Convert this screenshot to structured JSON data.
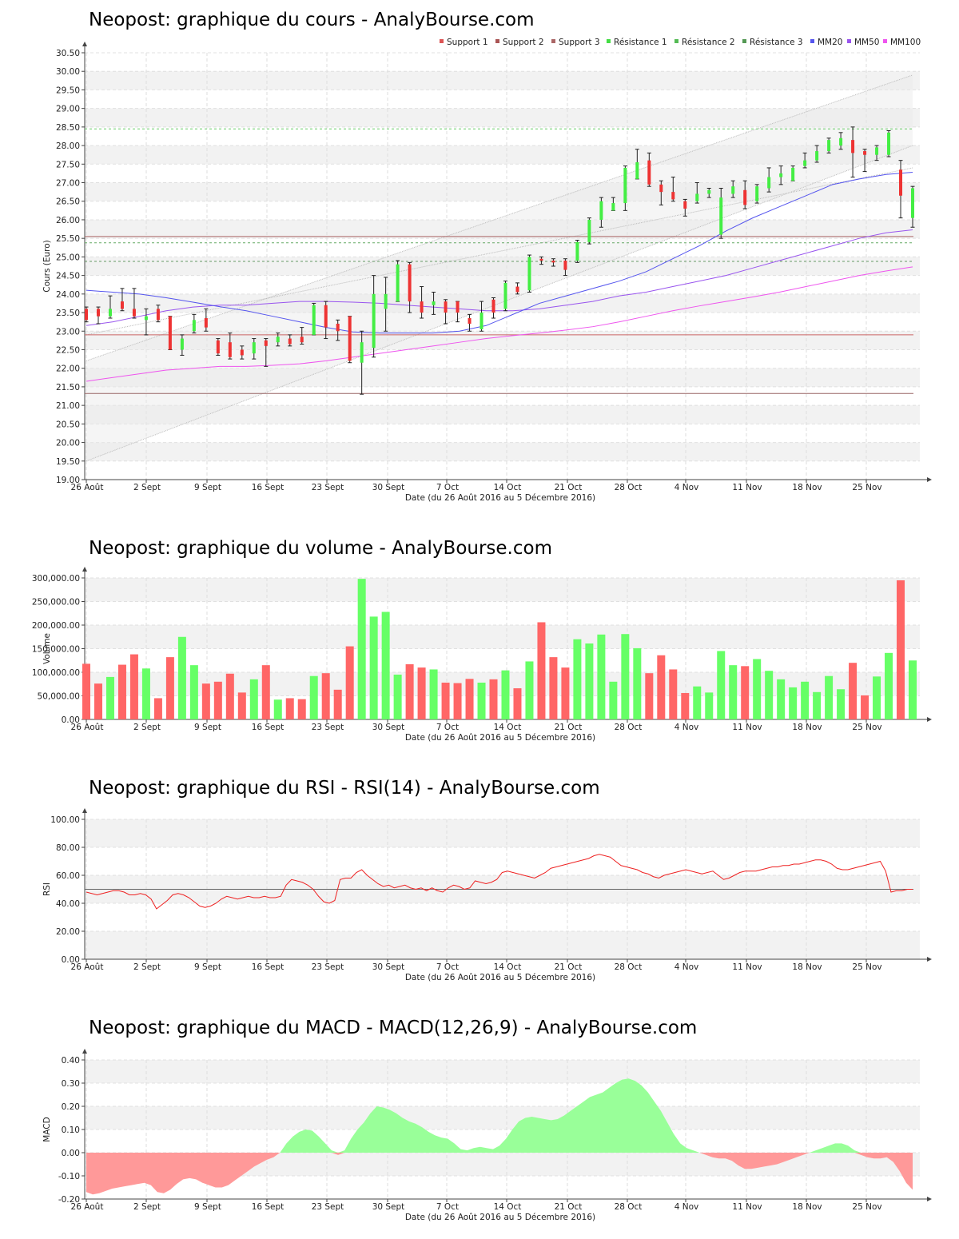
{
  "date_label": "Date (du 26 Août 2016 au 5 Décembre 2016)",
  "x_ticks": [
    "26 Août",
    "2 Sept",
    "9 Sept",
    "16 Sept",
    "23 Sept",
    "30 Sept",
    "7 Oct",
    "14 Oct",
    "21 Oct",
    "28 Oct",
    "4 Nov",
    "11 Nov",
    "18 Nov",
    "25 Nov"
  ],
  "colors": {
    "up": "#44ee44",
    "down": "#ee3333",
    "mm20": "#5555ee",
    "mm50": "#9955ee",
    "mm100": "#ee55ee",
    "rsi": "#ee2222",
    "macd_pos": "#99ff99",
    "macd_neg": "#ff9999"
  },
  "chart_data": [
    {
      "type": "candlestick",
      "title": "Neopost: graphique du cours - AnalyBourse.com",
      "ylabel": "Cours (Euro)",
      "xlabel": "Date (du 26 Août 2016 au 5 Décembre 2016)",
      "ylim": [
        19.0,
        30.5
      ],
      "yticks": [
        "19.00",
        "19.50",
        "20.00",
        "20.50",
        "21.00",
        "21.50",
        "22.00",
        "22.50",
        "23.00",
        "23.50",
        "24.00",
        "24.50",
        "25.00",
        "25.50",
        "26.00",
        "26.50",
        "27.00",
        "27.50",
        "28.00",
        "28.50",
        "29.00",
        "29.50",
        "30.00",
        "30.50"
      ],
      "legend_placement": "top-right",
      "legend": [
        "Support 1",
        "Support 2",
        "Support 3",
        "Résistance 1",
        "Résistance 2",
        "Résistance 3",
        "MM20",
        "MM50",
        "MM100"
      ],
      "levels": {
        "support_1": 22.9,
        "support_2": 21.32,
        "support_3": 25.55,
        "resistance_1": 28.45,
        "resistance_2": 25.38,
        "resistance_3": 24.88
      },
      "trend_channel": {
        "start": [
          19.5,
          22.2,
          22.9
        ],
        "end": [
          28.0,
          29.9,
          27.4
        ]
      },
      "candles": [
        {
          "o": 23.6,
          "c": 23.3,
          "h": 23.65,
          "l": 23.25
        },
        {
          "o": 23.6,
          "c": 23.4,
          "h": 23.65,
          "l": 23.2
        },
        {
          "o": 23.4,
          "c": 23.6,
          "h": 23.95,
          "l": 23.35
        },
        {
          "o": 23.8,
          "c": 23.6,
          "h": 24.15,
          "l": 23.55
        },
        {
          "o": 23.6,
          "c": 23.4,
          "h": 24.15,
          "l": 23.35
        },
        {
          "o": 23.3,
          "c": 23.4,
          "h": 23.6,
          "l": 22.9
        },
        {
          "o": 23.6,
          "c": 23.3,
          "h": 23.7,
          "l": 23.25
        },
        {
          "o": 23.4,
          "c": 22.5,
          "h": 23.4,
          "l": 22.5
        },
        {
          "o": 22.5,
          "c": 22.8,
          "h": 22.9,
          "l": 22.35
        },
        {
          "o": 23.0,
          "c": 23.3,
          "h": 23.45,
          "l": 22.95
        },
        {
          "o": 23.35,
          "c": 23.1,
          "h": 23.6,
          "l": 23.0
        },
        {
          "o": 22.75,
          "c": 22.4,
          "h": 22.8,
          "l": 22.35
        },
        {
          "o": 22.7,
          "c": 22.3,
          "h": 22.95,
          "l": 22.25
        },
        {
          "o": 22.5,
          "c": 22.35,
          "h": 22.6,
          "l": 22.25
        },
        {
          "o": 22.4,
          "c": 22.7,
          "h": 22.8,
          "l": 22.25
        },
        {
          "o": 22.75,
          "c": 22.6,
          "h": 22.8,
          "l": 22.05
        },
        {
          "o": 22.7,
          "c": 22.85,
          "h": 22.95,
          "l": 22.6
        },
        {
          "o": 22.8,
          "c": 22.65,
          "h": 22.9,
          "l": 22.6
        },
        {
          "o": 22.85,
          "c": 22.7,
          "h": 23.1,
          "l": 22.65
        },
        {
          "o": 22.9,
          "c": 23.7,
          "h": 23.75,
          "l": 22.9
        },
        {
          "o": 23.7,
          "c": 23.1,
          "h": 23.8,
          "l": 22.8
        },
        {
          "o": 23.2,
          "c": 23.0,
          "h": 23.3,
          "l": 22.75
        },
        {
          "o": 23.4,
          "c": 22.2,
          "h": 23.4,
          "l": 22.15
        },
        {
          "o": 22.15,
          "c": 22.7,
          "h": 23.0,
          "l": 21.3
        },
        {
          "o": 22.55,
          "c": 24.0,
          "h": 24.5,
          "l": 22.3
        },
        {
          "o": 23.6,
          "c": 24.0,
          "h": 24.45,
          "l": 23.0
        },
        {
          "o": 23.8,
          "c": 24.8,
          "h": 24.9,
          "l": 23.8
        },
        {
          "o": 24.8,
          "c": 23.8,
          "h": 24.85,
          "l": 23.5
        },
        {
          "o": 23.8,
          "c": 23.5,
          "h": 24.2,
          "l": 23.35
        },
        {
          "o": 23.7,
          "c": 23.8,
          "h": 24.05,
          "l": 23.45
        },
        {
          "o": 23.8,
          "c": 23.5,
          "h": 23.85,
          "l": 23.2
        },
        {
          "o": 23.8,
          "c": 23.5,
          "h": 23.8,
          "l": 23.25
        },
        {
          "o": 23.35,
          "c": 23.2,
          "h": 23.45,
          "l": 23.0
        },
        {
          "o": 23.05,
          "c": 23.5,
          "h": 23.8,
          "l": 23.0
        },
        {
          "o": 23.85,
          "c": 23.5,
          "h": 23.9,
          "l": 23.35
        },
        {
          "o": 23.6,
          "c": 24.3,
          "h": 24.35,
          "l": 23.55
        },
        {
          "o": 24.2,
          "c": 24.05,
          "h": 24.3,
          "l": 24.0
        },
        {
          "o": 24.1,
          "c": 25.0,
          "h": 25.05,
          "l": 24.05
        },
        {
          "o": 24.95,
          "c": 24.9,
          "h": 25.0,
          "l": 24.8
        },
        {
          "o": 24.9,
          "c": 24.85,
          "h": 24.95,
          "l": 24.75
        },
        {
          "o": 24.9,
          "c": 24.65,
          "h": 24.95,
          "l": 24.5
        },
        {
          "o": 24.9,
          "c": 25.4,
          "h": 25.45,
          "l": 24.85
        },
        {
          "o": 25.4,
          "c": 26.0,
          "h": 26.05,
          "l": 25.35
        },
        {
          "o": 26.0,
          "c": 26.5,
          "h": 26.6,
          "l": 25.8
        },
        {
          "o": 26.25,
          "c": 26.45,
          "h": 26.6,
          "l": 26.25
        },
        {
          "o": 26.45,
          "c": 27.4,
          "h": 27.45,
          "l": 26.25
        },
        {
          "o": 27.1,
          "c": 27.55,
          "h": 27.9,
          "l": 27.1
        },
        {
          "o": 27.6,
          "c": 26.95,
          "h": 27.8,
          "l": 26.9
        },
        {
          "o": 26.95,
          "c": 26.75,
          "h": 27.05,
          "l": 26.4
        },
        {
          "o": 26.75,
          "c": 26.55,
          "h": 27.15,
          "l": 26.5
        },
        {
          "o": 26.5,
          "c": 26.3,
          "h": 26.55,
          "l": 26.1
        },
        {
          "o": 26.5,
          "c": 26.7,
          "h": 27.0,
          "l": 26.45
        },
        {
          "o": 26.7,
          "c": 26.8,
          "h": 26.85,
          "l": 26.6
        },
        {
          "o": 25.6,
          "c": 26.6,
          "h": 26.85,
          "l": 25.5
        },
        {
          "o": 26.7,
          "c": 26.9,
          "h": 27.05,
          "l": 26.6
        },
        {
          "o": 26.8,
          "c": 26.4,
          "h": 27.05,
          "l": 26.3
        },
        {
          "o": 26.5,
          "c": 26.9,
          "h": 26.95,
          "l": 26.45
        },
        {
          "o": 26.85,
          "c": 27.15,
          "h": 27.4,
          "l": 26.75
        },
        {
          "o": 27.15,
          "c": 27.25,
          "h": 27.45,
          "l": 26.95
        },
        {
          "o": 27.05,
          "c": 27.4,
          "h": 27.45,
          "l": 27.05
        },
        {
          "o": 27.45,
          "c": 27.6,
          "h": 27.8,
          "l": 27.4
        },
        {
          "o": 27.6,
          "c": 27.85,
          "h": 28.0,
          "l": 27.55
        },
        {
          "o": 27.85,
          "c": 28.15,
          "h": 28.2,
          "l": 27.8
        },
        {
          "o": 28.0,
          "c": 28.2,
          "h": 28.35,
          "l": 27.9
        },
        {
          "o": 28.15,
          "c": 27.8,
          "h": 28.5,
          "l": 27.15
        },
        {
          "o": 27.85,
          "c": 27.75,
          "h": 27.9,
          "l": 27.3
        },
        {
          "o": 27.75,
          "c": 27.95,
          "h": 28.0,
          "l": 27.6
        },
        {
          "o": 27.75,
          "c": 28.35,
          "h": 28.4,
          "l": 27.7
        },
        {
          "o": 27.35,
          "c": 26.65,
          "h": 27.6,
          "l": 26.05
        },
        {
          "o": 26.05,
          "c": 26.85,
          "h": 26.9,
          "l": 25.8
        }
      ],
      "mm20": [
        24.1,
        24.05,
        24.0,
        23.9,
        23.78,
        23.66,
        23.55,
        23.4,
        23.25,
        23.1,
        22.98,
        22.95,
        22.95,
        22.95,
        23.0,
        23.15,
        23.45,
        23.75,
        23.95,
        24.15,
        24.35,
        24.6,
        24.95,
        25.3,
        25.7,
        26.05,
        26.35,
        26.65,
        26.95,
        27.1,
        27.22,
        27.28
      ],
      "mm50": [
        23.15,
        23.25,
        23.4,
        23.55,
        23.65,
        23.7,
        23.7,
        23.75,
        23.8,
        23.8,
        23.78,
        23.75,
        23.7,
        23.65,
        23.6,
        23.55,
        23.55,
        23.6,
        23.7,
        23.8,
        23.95,
        24.05,
        24.2,
        24.35,
        24.5,
        24.7,
        24.9,
        25.1,
        25.3,
        25.5,
        25.65,
        25.73
      ],
      "mm100": [
        21.65,
        21.75,
        21.85,
        21.95,
        22.0,
        22.05,
        22.05,
        22.08,
        22.12,
        22.2,
        22.3,
        22.4,
        22.5,
        22.6,
        22.7,
        22.8,
        22.88,
        22.95,
        23.03,
        23.12,
        23.25,
        23.4,
        23.55,
        23.68,
        23.8,
        23.92,
        24.05,
        24.2,
        24.35,
        24.5,
        24.62,
        24.73
      ]
    },
    {
      "type": "bar",
      "title": "Neopost: graphique du volume - AnalyBourse.com",
      "ylabel": "Volume",
      "xlabel": "Date (du 26 Août 2016 au 5 Décembre 2016)",
      "ylim": [
        0,
        300000
      ],
      "yticks": [
        "0.00",
        "50,000.00",
        "100,000.00",
        "150,000.00",
        "200,000.00",
        "250,000.00",
        "300,000.00"
      ],
      "values": [
        118000,
        76000,
        90000,
        116000,
        138000,
        108000,
        45000,
        132000,
        175000,
        115000,
        76000,
        80000,
        97000,
        57000,
        85000,
        115000,
        42000,
        45000,
        43000,
        92000,
        98000,
        63000,
        155000,
        298000,
        218000,
        228000,
        95000,
        117000,
        110000,
        106000,
        78000,
        77000,
        86000,
        78000,
        85000,
        104000,
        66000,
        123000,
        206000,
        132000,
        110000,
        170000,
        161000,
        180000,
        80000,
        181000,
        151000,
        98000,
        136000,
        106000,
        56000,
        70000,
        57000,
        145000,
        115000,
        113000,
        128000,
        103000,
        85000,
        68000,
        80000,
        58000,
        92000,
        64000,
        120000,
        51000,
        91000,
        141000,
        295000,
        125000
      ]
    },
    {
      "type": "line",
      "title": "Neopost: graphique du RSI - RSI(14) - AnalyBourse.com",
      "ylabel": "RSI",
      "xlabel": "Date (du 26 Août 2016 au 5 Décembre 2016)",
      "ylim": [
        0,
        100
      ],
      "yticks": [
        "0.00",
        "20.00",
        "40.00",
        "60.00",
        "80.00",
        "100.00"
      ],
      "reference": 50,
      "values": [
        48,
        47,
        46,
        47,
        48,
        49,
        49,
        48,
        46,
        46,
        47,
        46,
        43,
        36,
        39,
        42,
        46,
        47,
        46,
        44,
        41,
        38,
        37,
        38,
        40,
        43,
        45,
        44,
        43,
        44,
        45,
        44,
        44,
        45,
        44,
        44,
        45,
        53,
        57,
        56,
        55,
        53,
        50,
        45,
        41,
        40,
        42,
        57,
        58,
        58,
        62,
        64,
        60,
        57,
        54,
        52,
        53,
        51,
        52,
        53,
        51,
        50,
        51,
        49,
        51,
        49,
        48,
        51,
        53,
        52,
        50,
        51,
        56,
        55,
        54,
        55,
        57,
        62,
        63,
        62,
        61,
        60,
        59,
        58,
        60,
        62,
        65,
        66,
        67,
        68,
        69,
        70,
        71,
        72,
        74,
        75,
        74,
        73,
        70,
        67,
        66,
        65,
        64,
        62,
        61,
        59,
        58,
        60,
        61,
        62,
        63,
        64,
        63,
        62,
        61,
        62,
        63,
        60,
        57,
        58,
        60,
        62,
        63,
        63,
        63,
        64,
        65,
        66,
        66,
        67,
        67,
        68,
        68,
        69,
        70,
        71,
        71,
        70,
        68,
        65,
        64,
        64,
        65,
        66,
        67,
        68,
        69,
        70,
        63,
        48,
        49,
        49,
        50,
        50
      ]
    },
    {
      "type": "area",
      "title": "Neopost: graphique du MACD - MACD(12,26,9) - AnalyBourse.com",
      "ylabel": "MACD",
      "xlabel": "Date (du 26 Août 2016 au 5 Décembre 2016)",
      "ylim": [
        -0.2,
        0.4
      ],
      "yticks": [
        "-0.20",
        "-0.10",
        "0.00",
        "0.10",
        "0.20",
        "0.30",
        "0.40"
      ],
      "values": [
        -0.17,
        -0.18,
        -0.175,
        -0.165,
        -0.155,
        -0.15,
        -0.145,
        -0.14,
        -0.135,
        -0.13,
        -0.14,
        -0.17,
        -0.175,
        -0.16,
        -0.135,
        -0.115,
        -0.11,
        -0.115,
        -0.13,
        -0.14,
        -0.15,
        -0.15,
        -0.14,
        -0.12,
        -0.1,
        -0.08,
        -0.06,
        -0.045,
        -0.03,
        -0.02,
        0.0,
        0.04,
        0.07,
        0.09,
        0.1,
        0.095,
        0.07,
        0.04,
        0.01,
        -0.01,
        0.01,
        0.06,
        0.1,
        0.13,
        0.17,
        0.2,
        0.195,
        0.185,
        0.17,
        0.15,
        0.135,
        0.125,
        0.11,
        0.09,
        0.075,
        0.065,
        0.06,
        0.04,
        0.015,
        0.01,
        0.02,
        0.025,
        0.02,
        0.015,
        0.03,
        0.06,
        0.1,
        0.135,
        0.15,
        0.155,
        0.15,
        0.145,
        0.14,
        0.145,
        0.16,
        0.18,
        0.2,
        0.22,
        0.24,
        0.25,
        0.26,
        0.28,
        0.3,
        0.315,
        0.32,
        0.31,
        0.29,
        0.26,
        0.22,
        0.18,
        0.13,
        0.08,
        0.04,
        0.02,
        0.01,
        0.0,
        -0.01,
        -0.02,
        -0.025,
        -0.025,
        -0.035,
        -0.055,
        -0.07,
        -0.07,
        -0.065,
        -0.06,
        -0.055,
        -0.05,
        -0.04,
        -0.03,
        -0.02,
        -0.01,
        0.0,
        0.01,
        0.02,
        0.03,
        0.04,
        0.04,
        0.03,
        0.01,
        -0.01,
        -0.02,
        -0.025,
        -0.025,
        -0.02,
        -0.04,
        -0.08,
        -0.13,
        -0.16
      ]
    }
  ]
}
